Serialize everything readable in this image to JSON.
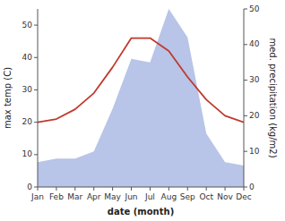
{
  "chart_data": {
    "type": "line",
    "xlabel": "date (month)",
    "ylabel": "max temp (C)",
    "y2label": "med. precipitation (kg/m2)",
    "categories": [
      "Jan",
      "Feb",
      "Mar",
      "Apr",
      "May",
      "Jun",
      "Jul",
      "Aug",
      "Sep",
      "Oct",
      "Nov",
      "Dec"
    ],
    "series": [
      {
        "type": "area",
        "axis": "y2",
        "color": "#b8c4e8",
        "values": [
          7,
          8,
          8,
          10,
          22,
          36,
          35,
          50,
          42,
          15,
          7,
          6
        ]
      },
      {
        "type": "line",
        "color": "#c0392b",
        "values": [
          20,
          21,
          24,
          29,
          37,
          46,
          46,
          42,
          34,
          27,
          22,
          20
        ]
      }
    ],
    "ylim": [
      0,
      55
    ],
    "yticks": [
      0,
      10,
      20,
      30,
      40,
      50
    ],
    "y2lim": [
      0,
      50
    ],
    "y2ticks": [
      0,
      10,
      20,
      30,
      40,
      50
    ],
    "grid": false
  }
}
